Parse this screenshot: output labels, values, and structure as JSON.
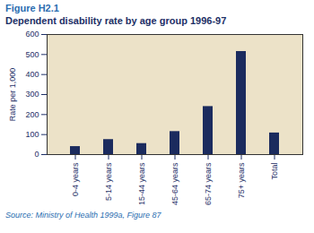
{
  "chart_data": {
    "type": "bar",
    "figure_label": "Figure H2.1",
    "title": "Dependent disability rate by age group 1996-97",
    "y_label": "Rate per 1,000",
    "source": "Source: Ministry of Health 1999a, Figure 87",
    "categories": [
      "0-4 years",
      "5-14 years",
      "15-44 years",
      "45-64 years",
      "65-74 years",
      "75+ years",
      "Total"
    ],
    "values": [
      40,
      75,
      55,
      115,
      240,
      515,
      108
    ],
    "color": "#1b2b5e",
    "ylim": [
      0,
      600
    ],
    "yticks": [
      0,
      100,
      200,
      300,
      400,
      500,
      600
    ],
    "grid": false
  }
}
